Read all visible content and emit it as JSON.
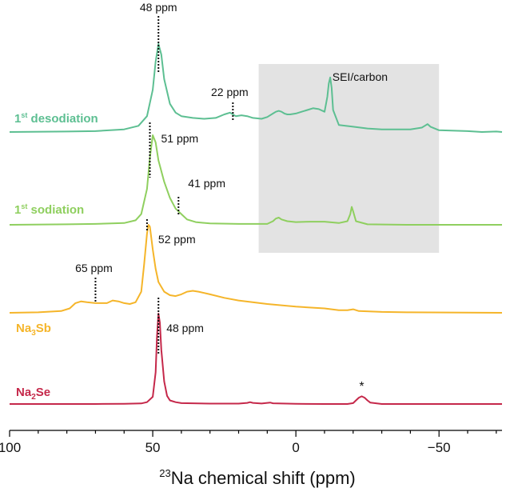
{
  "chart_data": {
    "type": "line",
    "title": "",
    "xlabel": "Na chemical shift (ppm)",
    "xlabel_superscript": "23",
    "ylabel": "",
    "xlim": [
      100,
      -72
    ],
    "xticks": [
      100,
      50,
      0,
      -50
    ],
    "xtick_labels": [
      "100",
      "50",
      "0",
      "−50"
    ],
    "grid": false,
    "legend": "none",
    "shaded_region": {
      "from": 13,
      "to": -50,
      "label": "SEI/carbon",
      "color": "#e3e3e3"
    },
    "series": [
      {
        "name": "1st desodiation",
        "color": "#5dbf92",
        "peak_labels": [
          {
            "x": 48,
            "text": "48 ppm"
          },
          {
            "x": 22,
            "text": "22 ppm"
          }
        ],
        "points": [
          [
            100,
            0
          ],
          [
            80,
            0.5
          ],
          [
            70,
            1
          ],
          [
            60,
            3
          ],
          [
            55,
            7
          ],
          [
            52,
            18
          ],
          [
            50,
            48
          ],
          [
            49,
            80
          ],
          [
            48,
            100
          ],
          [
            47,
            88
          ],
          [
            46,
            60
          ],
          [
            44,
            32
          ],
          [
            42,
            22
          ],
          [
            40,
            18
          ],
          [
            36,
            16
          ],
          [
            32,
            15
          ],
          [
            28,
            16
          ],
          [
            25,
            20
          ],
          [
            23,
            22
          ],
          [
            21,
            18
          ],
          [
            19,
            19
          ],
          [
            17,
            18
          ],
          [
            15,
            16
          ],
          [
            12,
            15
          ],
          [
            10,
            17
          ],
          [
            8,
            21
          ],
          [
            7,
            23
          ],
          [
            6,
            24
          ],
          [
            5,
            23
          ],
          [
            4,
            21
          ],
          [
            3,
            20
          ],
          [
            2,
            20
          ],
          [
            0,
            21
          ],
          [
            -2,
            23
          ],
          [
            -4,
            25
          ],
          [
            -6,
            27
          ],
          [
            -8,
            26
          ],
          [
            -10,
            23
          ],
          [
            -11,
            40
          ],
          [
            -11.5,
            55
          ],
          [
            -12,
            62
          ],
          [
            -12.5,
            50
          ],
          [
            -13,
            25
          ],
          [
            -15,
            8
          ],
          [
            -20,
            6
          ],
          [
            -25,
            4
          ],
          [
            -30,
            3
          ],
          [
            -40,
            3
          ],
          [
            -44,
            5
          ],
          [
            -45,
            7
          ],
          [
            -46,
            9
          ],
          [
            -47,
            6
          ],
          [
            -50,
            2
          ],
          [
            -60,
            1
          ],
          [
            -65,
            0
          ],
          [
            -70,
            0.5
          ],
          [
            -72,
            0
          ]
        ]
      },
      {
        "name": "1st sodiation",
        "color": "#8fcf5f",
        "peak_labels": [
          {
            "x": 51,
            "text": "51 ppm"
          },
          {
            "x": 41,
            "text": "41 ppm"
          }
        ],
        "points": [
          [
            100,
            0
          ],
          [
            80,
            0.5
          ],
          [
            70,
            1
          ],
          [
            60,
            2
          ],
          [
            56,
            5
          ],
          [
            54,
            12
          ],
          [
            52,
            40
          ],
          [
            51,
            75
          ],
          [
            50,
            100
          ],
          [
            49,
            92
          ],
          [
            48,
            72
          ],
          [
            46,
            48
          ],
          [
            44,
            30
          ],
          [
            42,
            18
          ],
          [
            41,
            15
          ],
          [
            40,
            12
          ],
          [
            38,
            6
          ],
          [
            35,
            3
          ],
          [
            30,
            1.5
          ],
          [
            20,
            1
          ],
          [
            10,
            1
          ],
          [
            8,
            4
          ],
          [
            7,
            7
          ],
          [
            6,
            8
          ],
          [
            5,
            6
          ],
          [
            3,
            4
          ],
          [
            0,
            3
          ],
          [
            -5,
            3.5
          ],
          [
            -10,
            3.5
          ],
          [
            -15,
            2
          ],
          [
            -18,
            4
          ],
          [
            -19,
            12
          ],
          [
            -19.5,
            20
          ],
          [
            -20,
            15
          ],
          [
            -21,
            4
          ],
          [
            -25,
            0.5
          ],
          [
            -40,
            0
          ],
          [
            -60,
            0
          ],
          [
            -72,
            0
          ]
        ]
      },
      {
        "name": "Na3Sb",
        "color": "#f5b52a",
        "peak_labels": [
          {
            "x": 52,
            "text": "52 ppm"
          },
          {
            "x": 70,
            "text": "65 ppm"
          }
        ],
        "points": [
          [
            100,
            0
          ],
          [
            90,
            0.5
          ],
          [
            82,
            2
          ],
          [
            79,
            5
          ],
          [
            77,
            11
          ],
          [
            75,
            13
          ],
          [
            73,
            12
          ],
          [
            70,
            11
          ],
          [
            66,
            11
          ],
          [
            64,
            14
          ],
          [
            62,
            13
          ],
          [
            60,
            11
          ],
          [
            58,
            10
          ],
          [
            56,
            12
          ],
          [
            54,
            24
          ],
          [
            53,
            55
          ],
          [
            52,
            90
          ],
          [
            51.5,
            100
          ],
          [
            51,
            98
          ],
          [
            50,
            72
          ],
          [
            49,
            50
          ],
          [
            48,
            35
          ],
          [
            46,
            24
          ],
          [
            44,
            20
          ],
          [
            42,
            19
          ],
          [
            40,
            21
          ],
          [
            38,
            24
          ],
          [
            36,
            25
          ],
          [
            34,
            24
          ],
          [
            30,
            21
          ],
          [
            25,
            17
          ],
          [
            20,
            14
          ],
          [
            10,
            10
          ],
          [
            0,
            7
          ],
          [
            -10,
            5
          ],
          [
            -15,
            3
          ],
          [
            -18,
            3
          ],
          [
            -20,
            4
          ],
          [
            -22,
            2
          ],
          [
            -30,
            1
          ],
          [
            -40,
            0.5
          ],
          [
            -72,
            0
          ]
        ]
      },
      {
        "name": "Na2Se",
        "color": "#c5284a",
        "peak_labels": [
          {
            "x": 48,
            "text": "48 ppm"
          },
          {
            "x": -23,
            "text": "*"
          }
        ],
        "points": [
          [
            100,
            0
          ],
          [
            70,
            0
          ],
          [
            60,
            0.3
          ],
          [
            54,
            0.6
          ],
          [
            52,
            2
          ],
          [
            50,
            8
          ],
          [
            49,
            35
          ],
          [
            48.5,
            75
          ],
          [
            48,
            100
          ],
          [
            47.5,
            90
          ],
          [
            47,
            60
          ],
          [
            46,
            25
          ],
          [
            45,
            9
          ],
          [
            44,
            4
          ],
          [
            42,
            2
          ],
          [
            40,
            1
          ],
          [
            30,
            0.4
          ],
          [
            20,
            0.4
          ],
          [
            17,
            1.2
          ],
          [
            16,
            2
          ],
          [
            15,
            1.2
          ],
          [
            12,
            0.5
          ],
          [
            10,
            1.2
          ],
          [
            9,
            1.6
          ],
          [
            8,
            0.8
          ],
          [
            0,
            0.2
          ],
          [
            -10,
            0
          ],
          [
            -18,
            0
          ],
          [
            -20,
            1
          ],
          [
            -21,
            4
          ],
          [
            -22,
            7
          ],
          [
            -23,
            8.5
          ],
          [
            -24,
            7
          ],
          [
            -25,
            4
          ],
          [
            -26,
            1.5
          ],
          [
            -30,
            0
          ],
          [
            -72,
            0
          ]
        ]
      }
    ]
  },
  "series_labels": {
    "desodiation": {
      "main": "1",
      "sup": "st",
      "rest": " desodiation"
    },
    "sodiation": {
      "main": "1",
      "sup": "st",
      "rest": " sodiation"
    },
    "na3sb": {
      "main": "Na",
      "sub": "3",
      "rest": "Sb"
    },
    "na2se": {
      "main": "Na",
      "sub": "2",
      "rest": "Se"
    }
  }
}
